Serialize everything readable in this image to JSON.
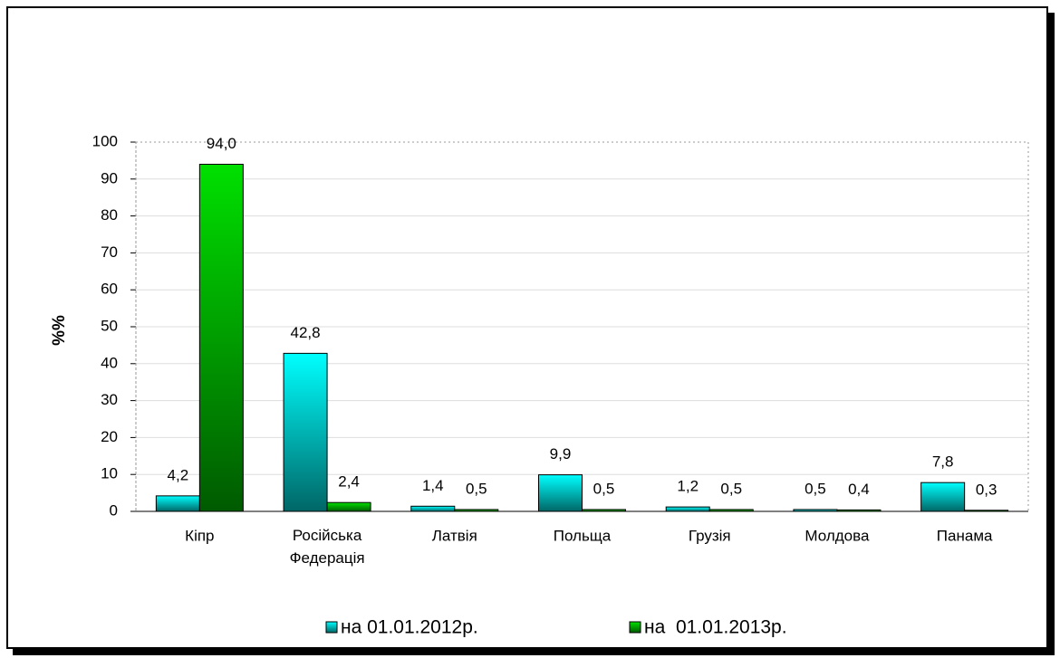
{
  "chart_data": {
    "type": "bar",
    "y_label": "%%",
    "categories": [
      "Кіпр",
      "Російська Федерація",
      "Латвія",
      "Польща",
      "Грузія",
      "Молдова",
      "Панама"
    ],
    "series": [
      {
        "name": "на 01.01.2012р.",
        "color": "#00ffff",
        "values": [
          4.2,
          42.8,
          1.4,
          9.9,
          1.2,
          0.5,
          7.8
        ],
        "value_labels": [
          "4,2",
          "42,8",
          "1,4",
          "9,9",
          "1,2",
          "0,5",
          "7,8"
        ]
      },
      {
        "name": "на  01.01.2013р.",
        "color": "#00e000",
        "values": [
          94.0,
          2.4,
          0.5,
          0.5,
          0.5,
          0.4,
          0.3
        ],
        "value_labels": [
          "94,0",
          "2,4",
          "0,5",
          "0,5",
          "0,5",
          "0,4",
          "0,3"
        ]
      }
    ],
    "ylim": [
      0,
      100
    ],
    "yticks": [
      0,
      10,
      20,
      30,
      40,
      50,
      60,
      70,
      80,
      90,
      100
    ],
    "grid": true,
    "legend": "bottom"
  }
}
